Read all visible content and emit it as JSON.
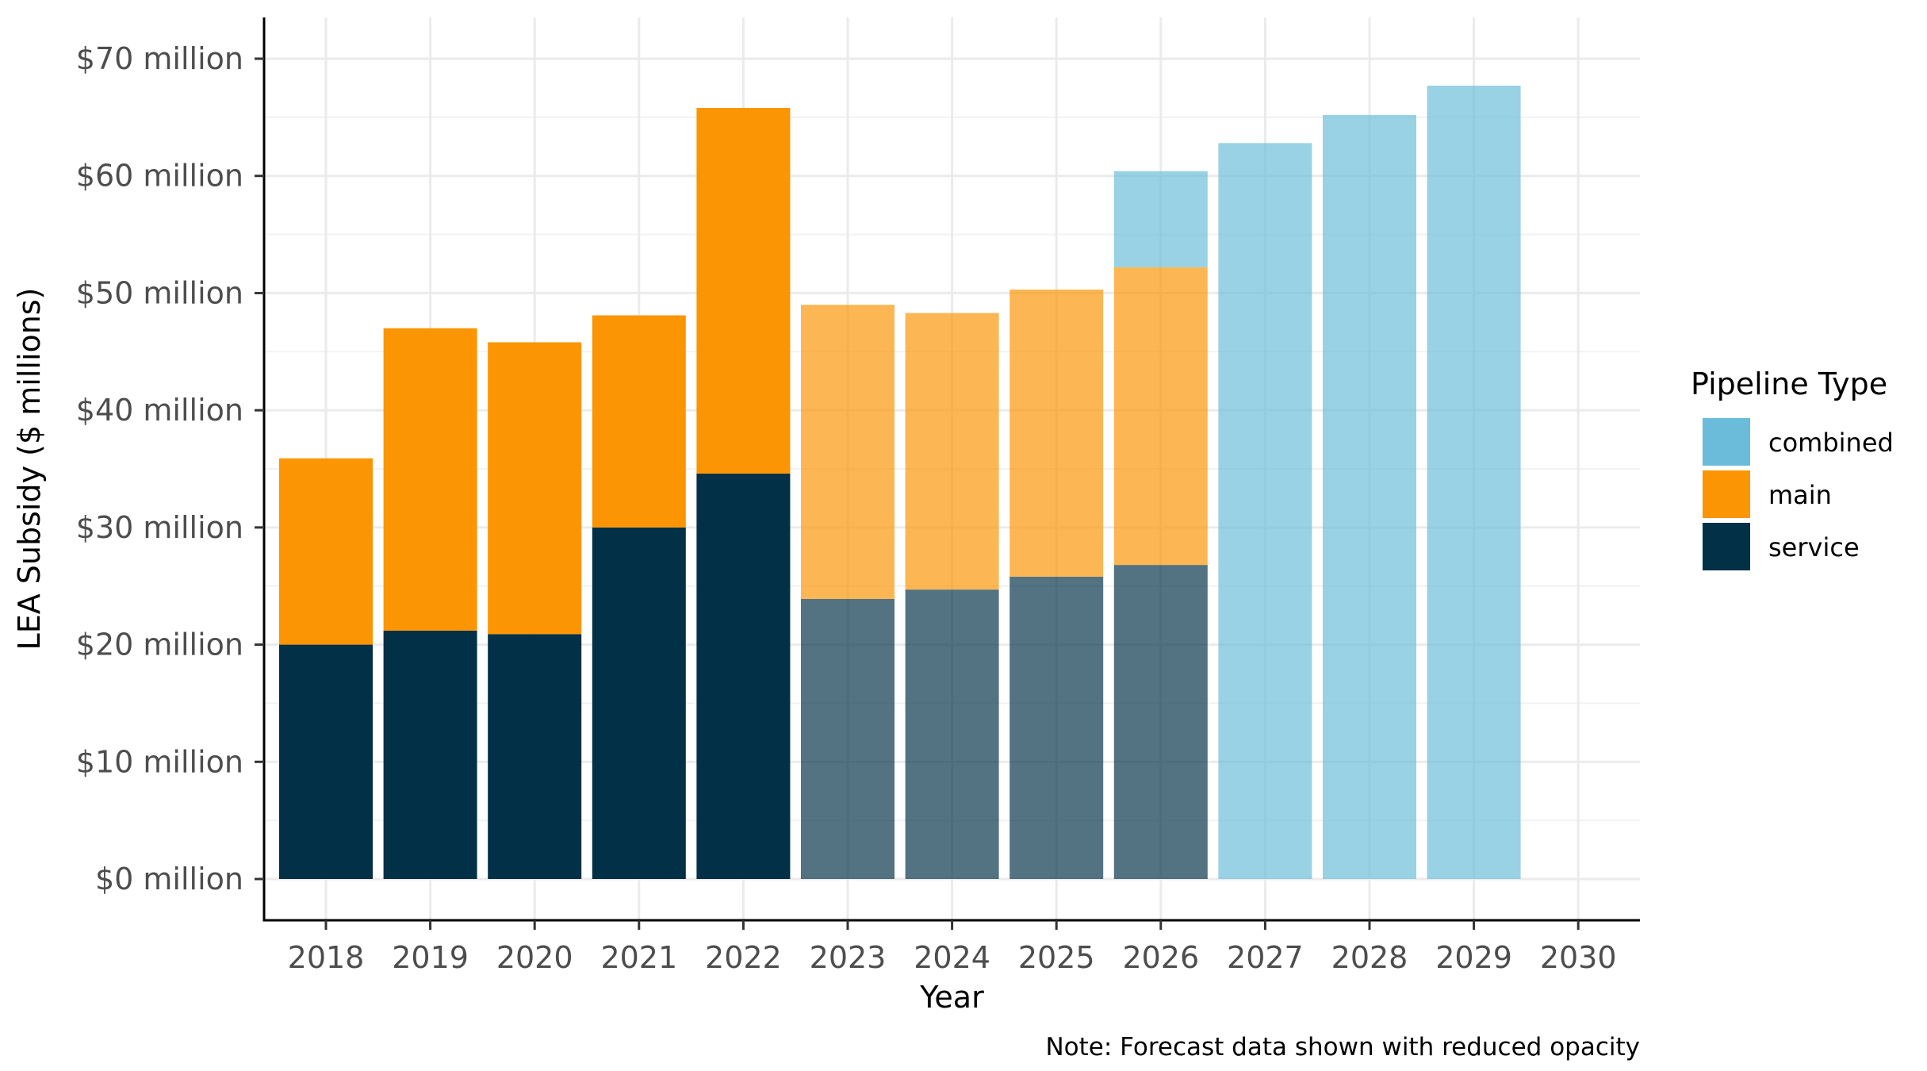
{
  "chart_data": {
    "type": "bar",
    "stacked": true,
    "categories": [
      "2018",
      "2019",
      "2020",
      "2021",
      "2022",
      "2023",
      "2024",
      "2025",
      "2026",
      "2027",
      "2028",
      "2029",
      "2030"
    ],
    "series": [
      {
        "name": "service",
        "color": "#023047",
        "values": [
          20.0,
          21.2,
          20.9,
          30.0,
          34.6,
          23.9,
          24.7,
          25.8,
          26.8,
          null,
          null,
          null,
          null
        ]
      },
      {
        "name": "main",
        "color": "#fb9503",
        "values": [
          15.9,
          25.8,
          24.9,
          18.1,
          31.2,
          25.1,
          23.6,
          24.5,
          25.4,
          null,
          null,
          null,
          null
        ]
      },
      {
        "name": "combined",
        "color": "#68bbd9",
        "values": [
          null,
          null,
          null,
          null,
          null,
          null,
          null,
          null,
          8.2,
          62.8,
          65.2,
          67.7,
          null
        ]
      }
    ],
    "forecast_years": [
      "2023",
      "2024",
      "2025",
      "2026",
      "2027",
      "2028",
      "2029",
      "2030"
    ],
    "ylim": [
      0,
      70
    ],
    "y_ticks": [
      0,
      10,
      20,
      30,
      40,
      50,
      60,
      70
    ],
    "y_tick_labels": [
      "$0 million",
      "$10 million",
      "$20 million",
      "$30 million",
      "$40 million",
      "$50 million",
      "$60 million",
      "$70 million"
    ],
    "xlabel": "Year",
    "ylabel": "LEA Subsidy ($ millions)",
    "legend": {
      "title": "Pipeline Type",
      "position": "right",
      "entries": [
        "combined",
        "main",
        "service"
      ]
    },
    "caption": "Note: Forecast data shown with reduced opacity",
    "grid": true
  }
}
